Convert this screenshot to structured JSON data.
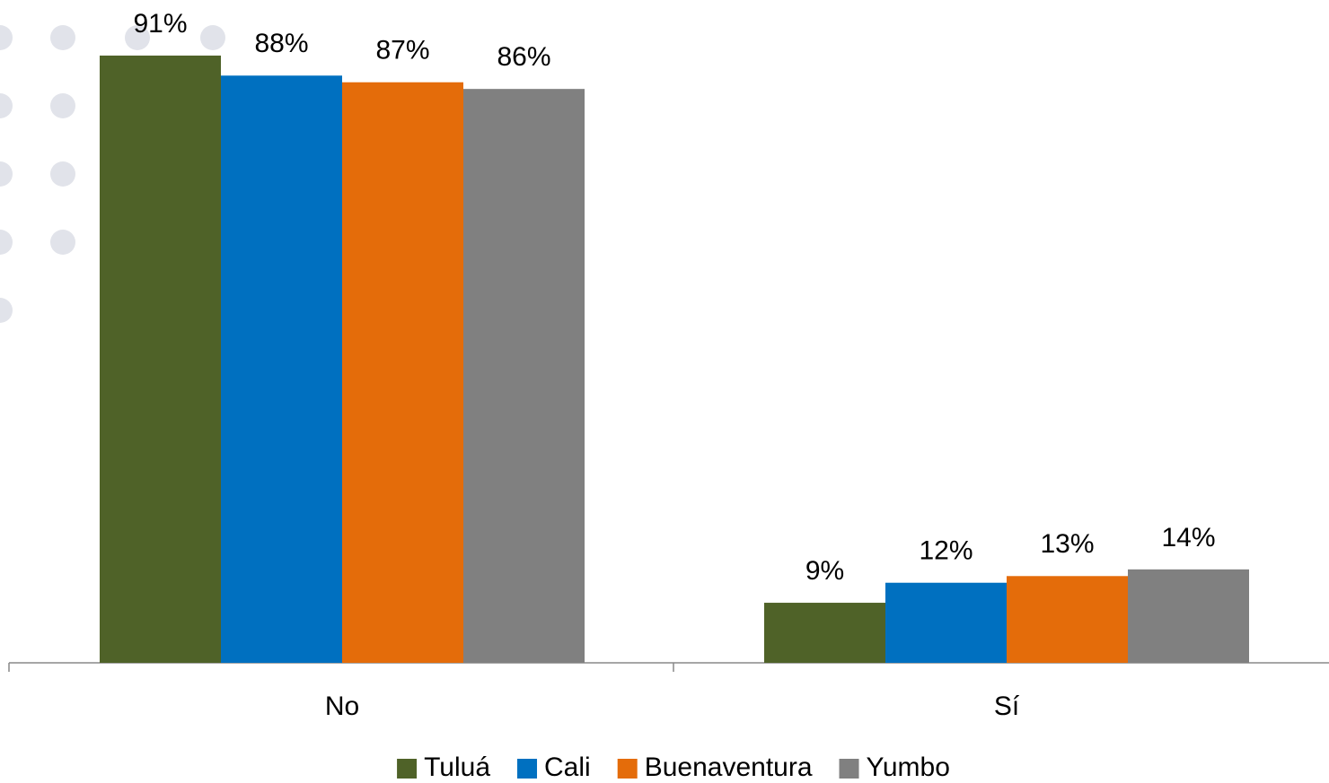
{
  "chart_data": {
    "type": "bar",
    "categories": [
      "No",
      "Sí"
    ],
    "series": [
      {
        "name": "Tuluá",
        "color": "#4f6228",
        "values": [
          91,
          9
        ],
        "value_labels": [
          "91%",
          "9%"
        ]
      },
      {
        "name": "Cali",
        "color": "#0070c0",
        "values": [
          88,
          12
        ],
        "value_labels": [
          "88%",
          "12%"
        ]
      },
      {
        "name": "Buenaventura",
        "color": "#e46c0a",
        "values": [
          87,
          13
        ],
        "value_labels": [
          "87%",
          "13%"
        ]
      },
      {
        "name": "Yumbo",
        "color": "#808080",
        "values": [
          86,
          14
        ],
        "value_labels": [
          "86%",
          "14%"
        ]
      }
    ],
    "ylim": [
      0,
      100
    ],
    "legend": "bottom"
  }
}
